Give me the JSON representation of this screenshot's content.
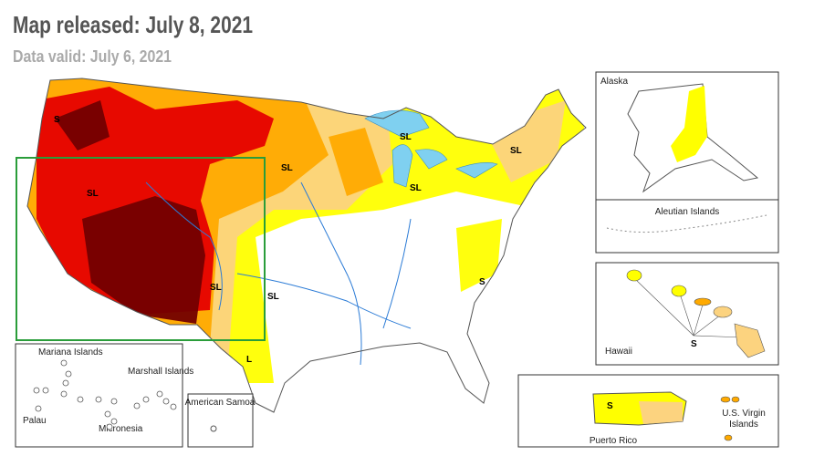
{
  "header": {
    "title": "Map released: July 8, 2021",
    "subtitle": "Data valid: July 6, 2021"
  },
  "map_labels": [
    "S",
    "SL",
    "SL",
    "SL",
    "SL",
    "SL",
    "SL",
    "S",
    "SL",
    "L"
  ],
  "insets": {
    "alaska": "Alaska",
    "aleutian": "Aleutian Islands",
    "hawaii": "Hawaii",
    "hawaii_label": "S",
    "puerto_rico": "Puerto Rico",
    "puerto_rico_label": "S",
    "virgin_islands": "U.S. Virgin Islands",
    "mariana": "Mariana Islands",
    "marshall": "Marshall Islands",
    "palau": "Palau",
    "micronesia": "Micronesia",
    "samoa": "American Samoa"
  }
}
